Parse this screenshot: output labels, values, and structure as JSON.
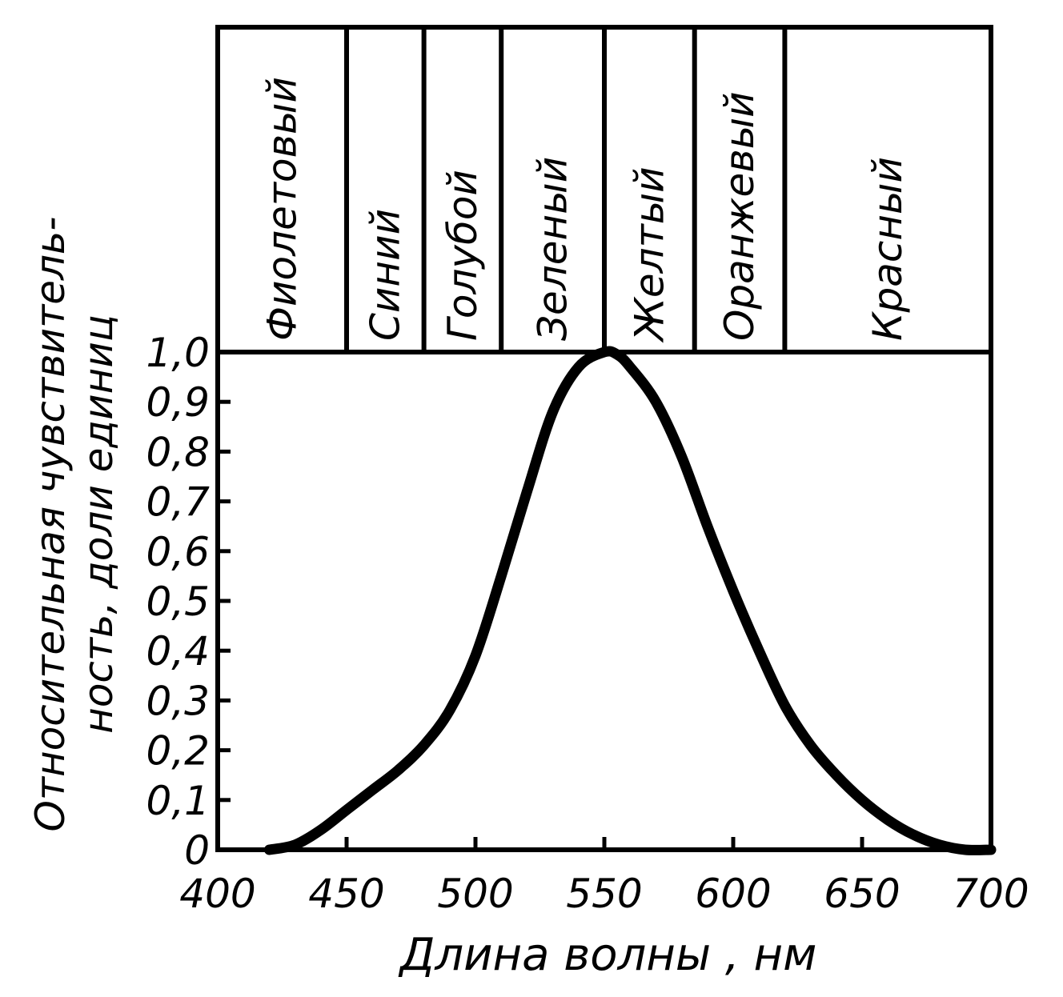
{
  "chart_data": {
    "type": "line",
    "title": "",
    "xlabel": "Длина волны , нм",
    "ylabel_lines": [
      "Относительная чувствитель-",
      "ность, доли единиц"
    ],
    "xlim": [
      400,
      700
    ],
    "ylim": [
      0,
      1.0
    ],
    "x_ticks": [
      400,
      450,
      500,
      550,
      600,
      650,
      700
    ],
    "x_tick_labels": [
      "400",
      "450",
      "500",
      "550",
      "600",
      "650",
      "700"
    ],
    "y_ticks": [
      0,
      0.1,
      0.2,
      0.3,
      0.4,
      0.5,
      0.6,
      0.7,
      0.8,
      0.9,
      1.0
    ],
    "y_tick_labels": [
      "0",
      "0,1",
      "0,2",
      "0,3",
      "0,4",
      "0,5",
      "0,6",
      "0,7",
      "0,8",
      "0,9",
      "1,0"
    ],
    "grid": false,
    "series": [
      {
        "x": [
          420,
          430,
          440,
          450,
          460,
          470,
          480,
          490,
          500,
          510,
          520,
          530,
          540,
          550,
          555,
          560,
          570,
          580,
          590,
          600,
          610,
          620,
          630,
          640,
          650,
          660,
          670,
          680,
          690,
          700
        ],
        "y": [
          0.0,
          0.01,
          0.04,
          0.08,
          0.12,
          0.16,
          0.21,
          0.28,
          0.39,
          0.55,
          0.72,
          0.88,
          0.97,
          1.0,
          0.995,
          0.97,
          0.9,
          0.79,
          0.65,
          0.52,
          0.4,
          0.29,
          0.21,
          0.15,
          0.1,
          0.06,
          0.03,
          0.01,
          0.0,
          0.0
        ]
      }
    ],
    "color_bands": [
      {
        "label": "Фиолетовый",
        "from": 400,
        "to": 450
      },
      {
        "label": "Синий",
        "from": 450,
        "to": 480
      },
      {
        "label": "Голубой",
        "from": 480,
        "to": 510
      },
      {
        "label": "Зеленый",
        "from": 510,
        "to": 550
      },
      {
        "label": "Желтый",
        "from": 550,
        "to": 585
      },
      {
        "label": "Оранжевый",
        "from": 585,
        "to": 620
      },
      {
        "label": "Красный",
        "from": 620,
        "to": 700
      }
    ]
  }
}
